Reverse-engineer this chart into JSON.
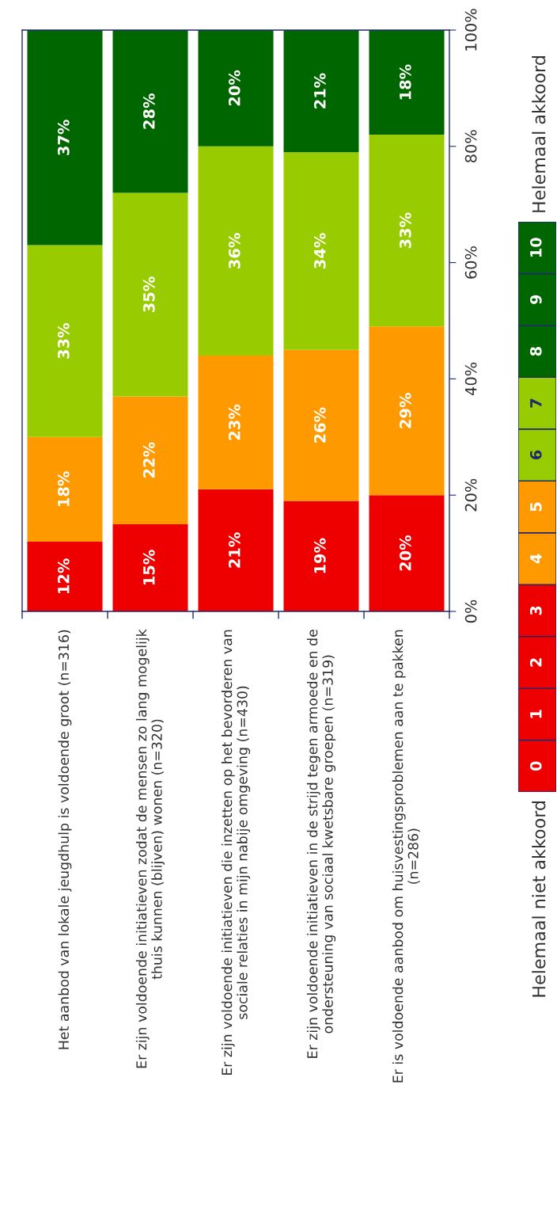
{
  "chart_data": {
    "type": "bar",
    "stacked": true,
    "categories": [
      "Het aanbod van lokale jeugdhulp is voldoende groot (n=316)",
      "Er zijn voldoende initiatieven zodat de mensen zo lang mogelijk\nthuis kunnen (blijven) wonen (n=320)",
      "Er zijn voldoende initiatieven die inzetten op het bevorderen van\nsociale relaties in mijn nabije omgeving (n=430)",
      "Er zijn voldoende initiatieven in de strijd tegen armoede en de\nondersteuning van sociaal kwetsbare groepen (n=319)",
      "Er is voldoende aanbod om huisvestingsproblemen aan te pakken\n(n=286)"
    ],
    "series": [
      {
        "color": "#ee0000",
        "values": [
          12,
          15,
          21,
          19,
          20
        ],
        "value_labels": [
          "12%",
          "15%",
          "21%",
          "19%",
          "20%"
        ]
      },
      {
        "color": "#ff9900",
        "values": [
          18,
          22,
          23,
          26,
          29
        ],
        "value_labels": [
          "18%",
          "22%",
          "23%",
          "26%",
          "29%"
        ]
      },
      {
        "color": "#99cc00",
        "values": [
          33,
          35,
          36,
          34,
          33
        ],
        "value_labels": [
          "33%",
          "35%",
          "36%",
          "34%",
          "33%"
        ]
      },
      {
        "color": "#006600",
        "values": [
          37,
          28,
          20,
          21,
          18
        ],
        "value_labels": [
          "37%",
          "28%",
          "20%",
          "21%",
          "18%"
        ]
      }
    ],
    "ylim": [
      0,
      100
    ],
    "yticks": [
      {
        "value": 0,
        "label": "0%"
      },
      {
        "value": 20,
        "label": "20%"
      },
      {
        "value": 40,
        "label": "40%"
      },
      {
        "value": 60,
        "label": "60%"
      },
      {
        "value": 80,
        "label": "80%"
      },
      {
        "value": 100,
        "label": "100%"
      }
    ],
    "grid": false,
    "annotations": [
      "Helemaal niet akkoord",
      "0",
      "1",
      "2",
      "3",
      "4",
      "5",
      "6",
      "7",
      "8",
      "9",
      "10",
      "Helemaal akkoord"
    ]
  }
}
